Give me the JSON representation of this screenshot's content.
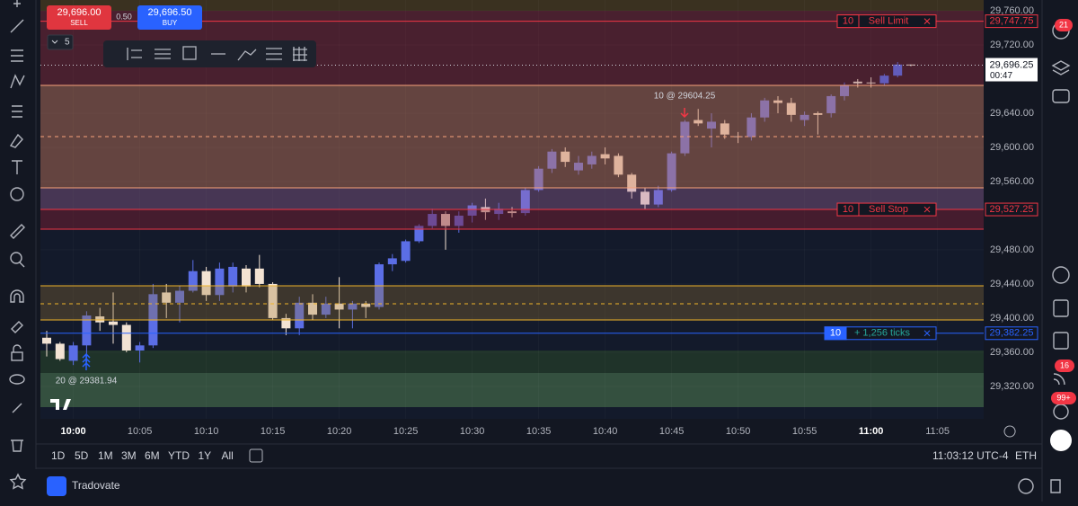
{
  "header": {
    "sell_price": "29,696.00",
    "sell_label": "SELL",
    "spread": "0.50",
    "buy_price": "29,696.50",
    "buy_label": "BUY",
    "quantity": "5"
  },
  "chart_data": {
    "type": "candlestick",
    "x": [
      "9:58",
      "9:59",
      "10:00",
      "10:01",
      "10:02",
      "10:03",
      "10:04",
      "10:05",
      "10:06",
      "10:07",
      "10:08",
      "10:09",
      "10:10",
      "10:11",
      "10:12",
      "10:13",
      "10:14",
      "10:15",
      "10:16",
      "10:17",
      "10:18",
      "10:19",
      "10:20",
      "10:21",
      "10:22",
      "10:23",
      "10:24",
      "10:25",
      "10:26",
      "10:27",
      "10:28",
      "10:29",
      "10:30",
      "10:31",
      "10:32",
      "10:33",
      "10:34",
      "10:35",
      "10:36",
      "10:37",
      "10:38",
      "10:39",
      "10:40",
      "10:41",
      "10:42",
      "10:43",
      "10:44",
      "10:45",
      "10:46",
      "10:47",
      "10:48",
      "10:49",
      "10:50",
      "10:51",
      "10:52",
      "10:53",
      "10:54",
      "10:55",
      "10:56",
      "10:57",
      "10:58",
      "10:59",
      "11:00",
      "11:01",
      "11:02",
      "11:03"
    ],
    "open": [
      29377,
      29370,
      29350,
      29368,
      29402,
      29396,
      29392,
      29362,
      29368,
      29430,
      29418,
      29432,
      29455,
      29427,
      29437,
      29458,
      29458,
      29440,
      29400,
      29388,
      29418,
      29404,
      29417,
      29410,
      29417,
      29413,
      29463,
      29467,
      29490,
      29508,
      29522,
      29508,
      29520,
      29530,
      29522,
      29525,
      29523,
      29550,
      29575,
      29595,
      29573,
      29580,
      29592,
      29590,
      29568,
      29548,
      29533,
      29550,
      29593,
      29632,
      29622,
      29628,
      29613,
      29612,
      29635,
      29655,
      29652,
      29632,
      29640,
      29640,
      29660,
      29677,
      29676,
      29675,
      29684,
      29697
    ],
    "high": [
      29385,
      29372,
      29372,
      29408,
      29412,
      29430,
      29395,
      29372,
      29440,
      29440,
      29438,
      29468,
      29460,
      29465,
      29465,
      29462,
      29474,
      29442,
      29405,
      29425,
      29428,
      29425,
      29448,
      29420,
      29420,
      29465,
      29475,
      29492,
      29510,
      29528,
      29525,
      29525,
      29535,
      29540,
      29535,
      29530,
      29552,
      29578,
      29598,
      29600,
      29590,
      29595,
      29600,
      29593,
      29570,
      29552,
      29555,
      29595,
      29632,
      29645,
      29640,
      29632,
      29618,
      29640,
      29658,
      29660,
      29658,
      29642,
      29642,
      29662,
      29676,
      29680,
      29682,
      29686,
      29700,
      29697
    ],
    "low": [
      29355,
      29350,
      29345,
      29348,
      29385,
      29370,
      29360,
      29348,
      29365,
      29400,
      29395,
      29430,
      29420,
      29420,
      29430,
      29430,
      29436,
      29398,
      29380,
      29380,
      29398,
      29400,
      29388,
      29388,
      29400,
      29410,
      29455,
      29465,
      29488,
      29505,
      29480,
      29500,
      29512,
      29515,
      29515,
      29518,
      29520,
      29548,
      29570,
      29577,
      29568,
      29575,
      29580,
      29565,
      29540,
      29528,
      29530,
      29548,
      29590,
      29625,
      29600,
      29610,
      29605,
      29608,
      29630,
      29640,
      29630,
      29625,
      29615,
      29635,
      29655,
      29670,
      29670,
      29672,
      29682,
      29695
    ],
    "close": [
      29370,
      29352,
      29368,
      29403,
      29395,
      29392,
      29362,
      29368,
      29428,
      29418,
      29432,
      29455,
      29427,
      29458,
      29460,
      29437,
      29440,
      29400,
      29388,
      29418,
      29404,
      29417,
      29410,
      29417,
      29413,
      29463,
      29470,
      29490,
      29508,
      29522,
      29508,
      29520,
      29532,
      29524,
      29528,
      29523,
      29550,
      29575,
      29595,
      29583,
      29582,
      29590,
      29587,
      29568,
      29548,
      29533,
      29550,
      29593,
      29630,
      29628,
      29630,
      29615,
      29612,
      29635,
      29655,
      29652,
      29638,
      29638,
      29638,
      29660,
      29673,
      29675,
      29675,
      29684,
      29697,
      29696.25
    ],
    "up_color": "#5b6ee6",
    "down_color": "#f3e3d3",
    "ylim": [
      29282,
      29772.6
    ],
    "yticks": [
      {
        "value": 29320,
        "label": "29,320.00"
      },
      {
        "value": 29360,
        "label": "29,360.00"
      },
      {
        "value": 29400,
        "label": "29,400.00"
      },
      {
        "value": 29440,
        "label": "29,440.00"
      },
      {
        "value": 29480,
        "label": "29,480.00"
      },
      {
        "value": 29560,
        "label": "29,560.00"
      },
      {
        "value": 29600,
        "label": "29,600.00"
      },
      {
        "value": 29640,
        "label": "29,640.00"
      },
      {
        "value": 29720,
        "label": "29,720.00"
      },
      {
        "value": 29760,
        "label": "29,760.00"
      }
    ],
    "xlim": [
      "9:58",
      "11:08"
    ],
    "xticks": [
      "10:00",
      "10:05",
      "10:10",
      "10:15",
      "10:20",
      "10:25",
      "10:30",
      "10:35",
      "10:40",
      "10:45",
      "10:50",
      "10:55",
      "11:00",
      "11:05"
    ],
    "price_lines": [
      {
        "value": 29747.75,
        "label": "29,747.75",
        "order_qty": "10",
        "order_text": "Sell Limit",
        "color": "#f23645"
      },
      {
        "value": 29527.25,
        "label": "29,527.25",
        "order_qty": "10",
        "order_text": "Sell Stop",
        "color": "#f23645"
      },
      {
        "value": 29382.25,
        "label": "29,382.25",
        "order_qty": "10",
        "order_text": "+ 1,256 ticks",
        "color": "#2962ff"
      }
    ],
    "last_price": {
      "value": 29696.25,
      "label": "29,696.25",
      "countdown": "00:47"
    },
    "annotations": [
      "10 @ 29604.25",
      "20 @ 29381.94"
    ]
  },
  "range_buttons": [
    "1D",
    "5D",
    "1M",
    "3M",
    "6M",
    "YTD",
    "1Y",
    "All"
  ],
  "clock": "11:03:12 UTC-4",
  "session": "ETH",
  "footer": {
    "app": "Tradovate"
  },
  "badges": [
    "21",
    "16",
    "99+"
  ]
}
